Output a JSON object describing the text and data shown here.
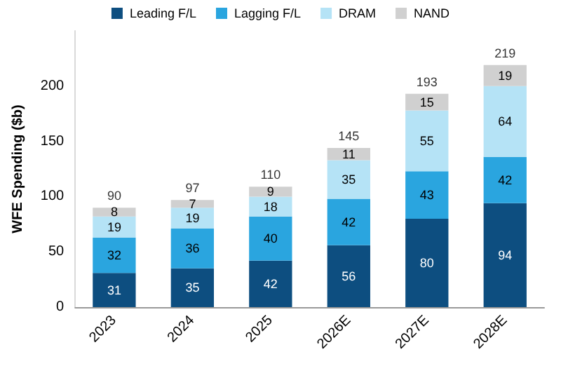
{
  "chart_data": {
    "type": "bar",
    "stacked": true,
    "ylabel": "WFE Spending ($b)",
    "categories": [
      "2023",
      "2024",
      "2025",
      "2026E",
      "2027E",
      "2028E"
    ],
    "series": [
      {
        "name": "Leading F/L",
        "color": "#0d4e80",
        "values": [
          31,
          35,
          42,
          56,
          80,
          94
        ]
      },
      {
        "name": "Lagging F/L",
        "color": "#2aa5df",
        "values": [
          32,
          36,
          40,
          42,
          43,
          42
        ]
      },
      {
        "name": "DRAM",
        "color": "#b5e3f6",
        "values": [
          19,
          19,
          18,
          35,
          55,
          64
        ]
      },
      {
        "name": "NAND",
        "color": "#d0d0d0",
        "values": [
          8,
          7,
          9,
          11,
          15,
          19
        ]
      }
    ],
    "totals": [
      "90",
      "97",
      "110",
      "145",
      "193",
      "219"
    ],
    "data_labels": true,
    "legend": "top",
    "grid": false,
    "ylim": [
      0,
      250
    ],
    "yticks": [
      0,
      50,
      100,
      150,
      200
    ]
  }
}
